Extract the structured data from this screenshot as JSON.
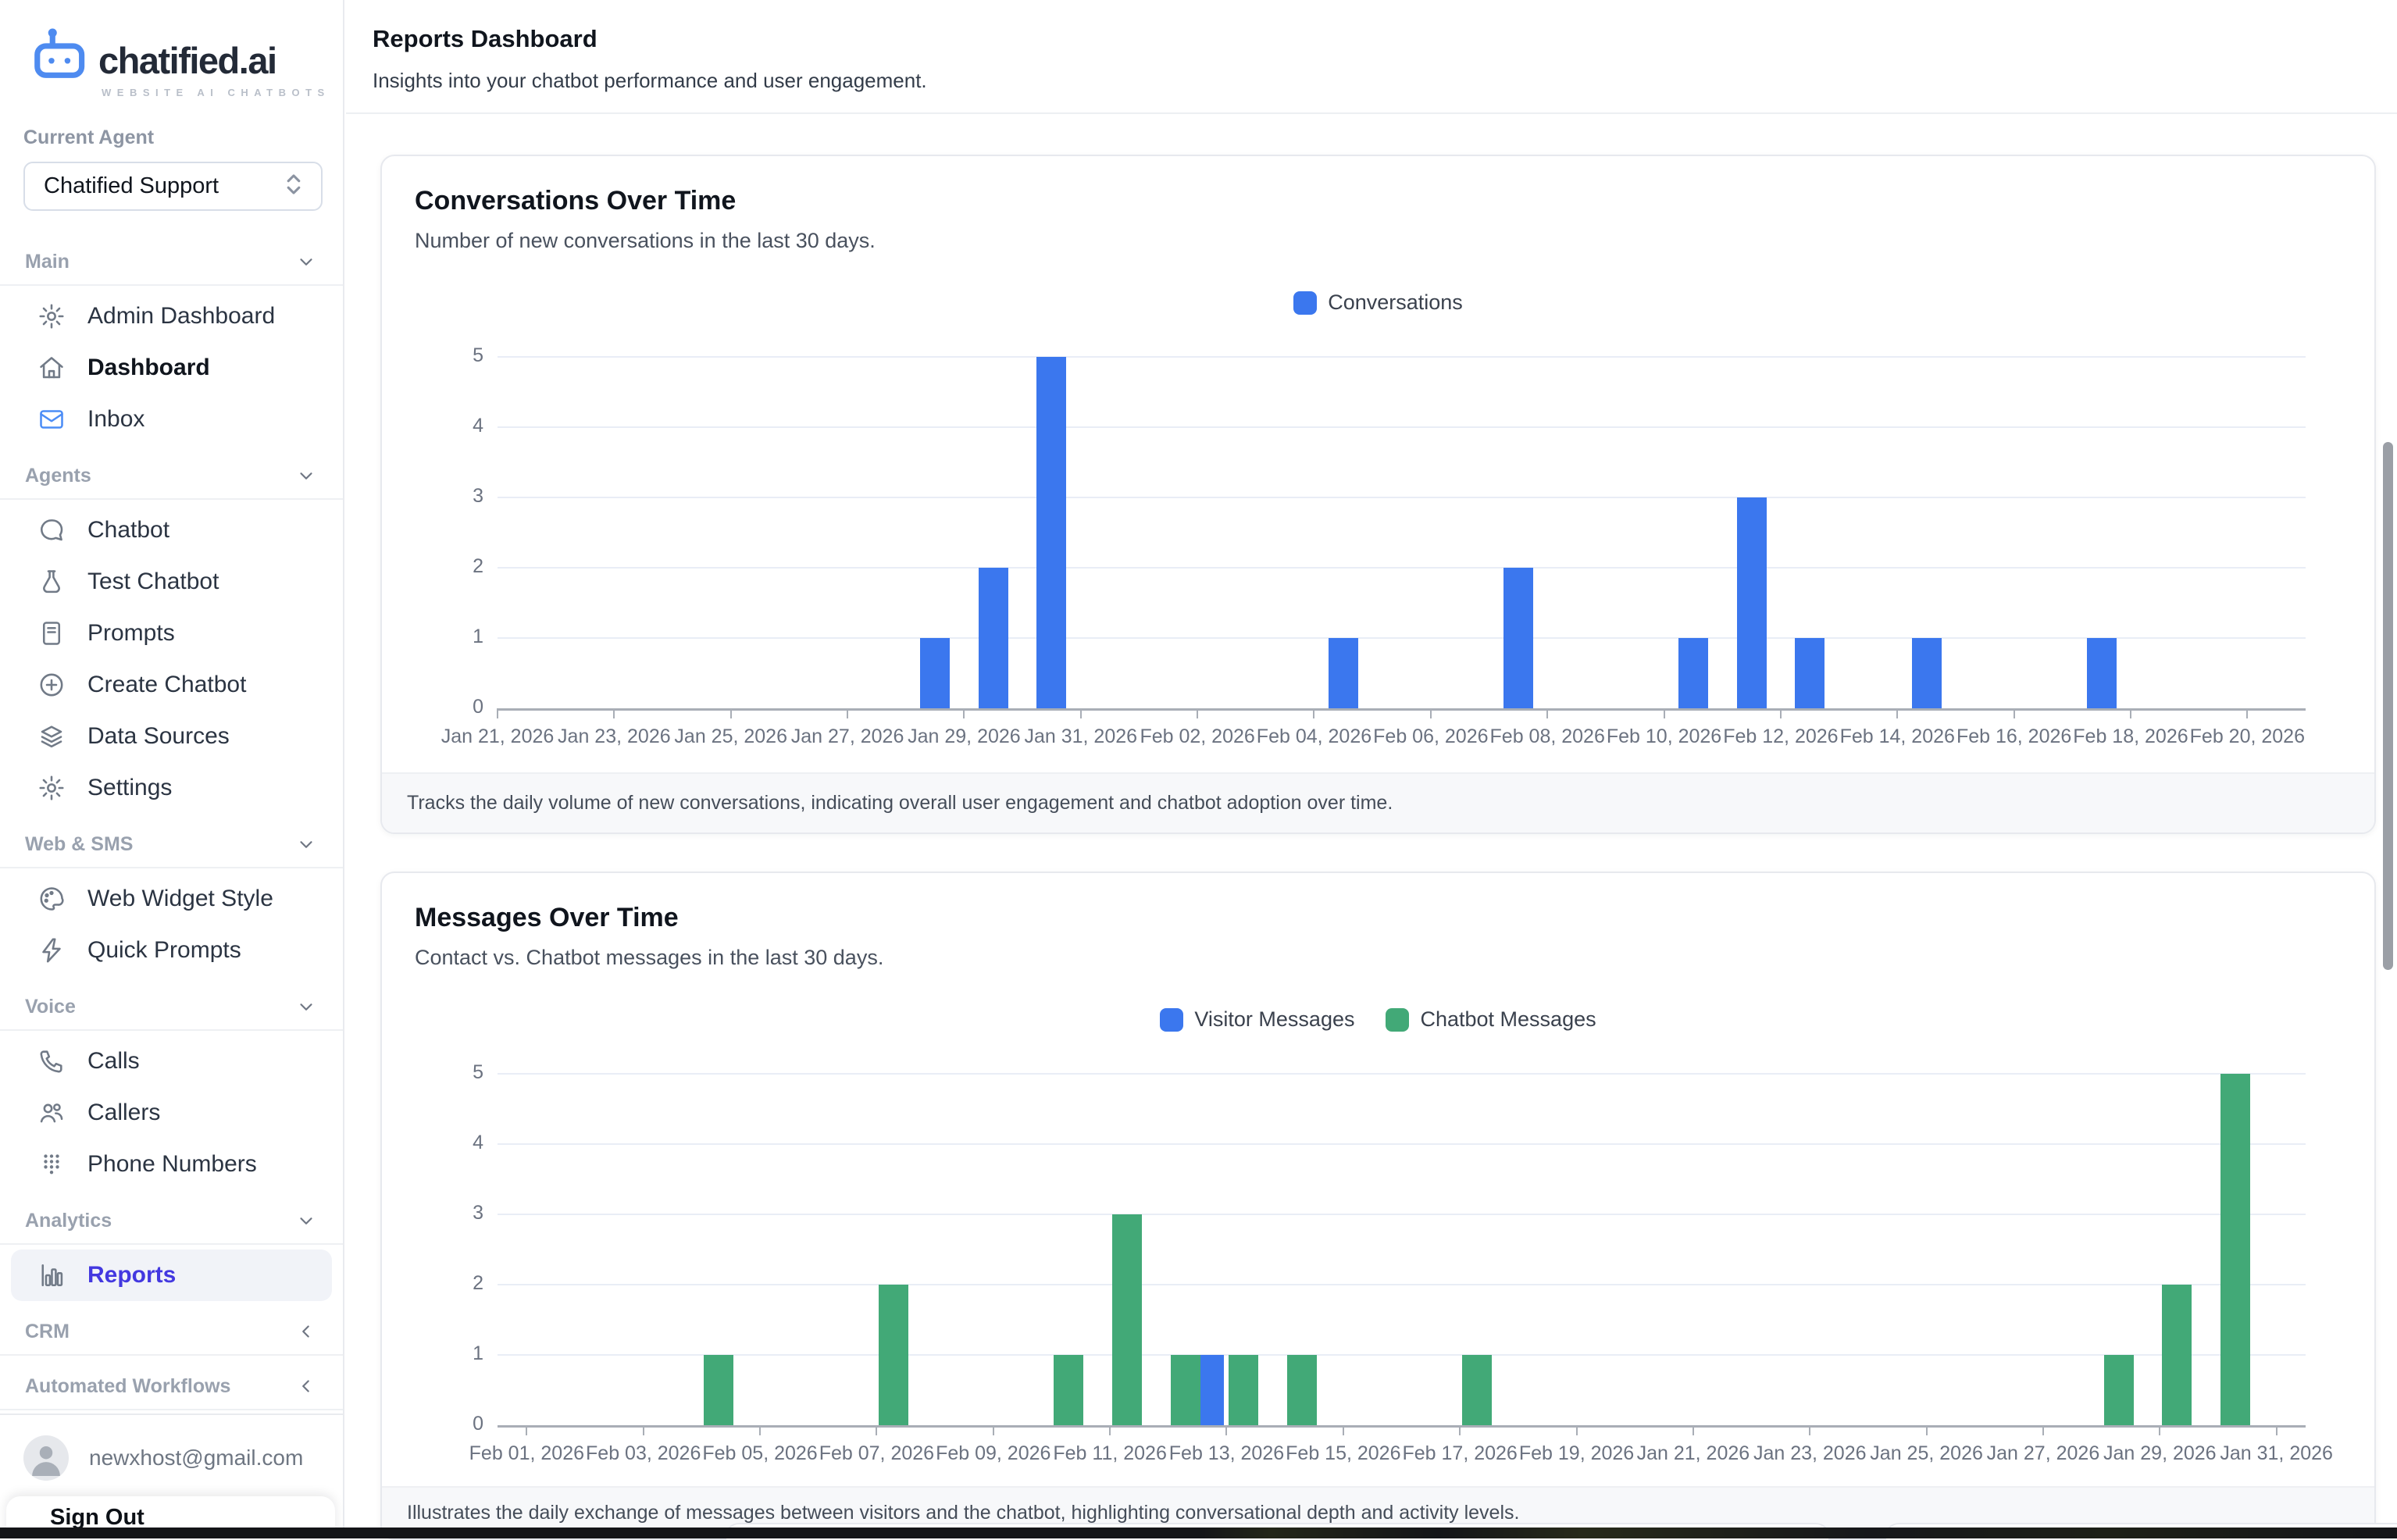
{
  "sidebar": {
    "brand": "chatified.ai",
    "tagline": "WEBSITE AI CHATBOTS",
    "current_agent_label": "Current Agent",
    "agent_select_value": "Chatified Support",
    "sections": [
      {
        "label": "Main",
        "chevron": "down",
        "items": [
          {
            "icon": "gear-icon",
            "label": "Admin Dashboard"
          },
          {
            "icon": "home-icon",
            "label": "Dashboard",
            "bold": true
          },
          {
            "icon": "mail-icon",
            "label": "Inbox",
            "icon_color": "#4c8df6"
          }
        ]
      },
      {
        "label": "Agents",
        "chevron": "down",
        "items": [
          {
            "icon": "chat-bubble-icon",
            "label": "Chatbot"
          },
          {
            "icon": "flask-icon",
            "label": "Test Chatbot"
          },
          {
            "icon": "document-icon",
            "label": "Prompts"
          },
          {
            "icon": "plus-circle-icon",
            "label": "Create Chatbot"
          },
          {
            "icon": "layers-icon",
            "label": "Data Sources"
          },
          {
            "icon": "gear-icon",
            "label": "Settings"
          }
        ]
      },
      {
        "label": "Web & SMS",
        "chevron": "down",
        "items": [
          {
            "icon": "palette-icon",
            "label": "Web Widget Style"
          },
          {
            "icon": "bolt-icon",
            "label": "Quick Prompts"
          }
        ]
      },
      {
        "label": "Voice",
        "chevron": "down",
        "items": [
          {
            "icon": "phone-icon",
            "label": "Calls"
          },
          {
            "icon": "users-icon",
            "label": "Callers"
          },
          {
            "icon": "dialpad-icon",
            "label": "Phone Numbers"
          }
        ]
      },
      {
        "label": "Analytics",
        "chevron": "down",
        "items": [
          {
            "icon": "bar-chart-icon",
            "label": "Reports",
            "active": true
          }
        ]
      },
      {
        "label": "CRM",
        "chevron": "left",
        "items": []
      },
      {
        "label": "Automated Workflows",
        "chevron": "left",
        "items": []
      }
    ],
    "user_email": "newxhost@gmail.com",
    "sign_out_label": "Sign Out",
    "accent_color": "#4338e0"
  },
  "header": {
    "title": "Reports Dashboard",
    "subtitle": "Insights into your chatbot performance and user engagement."
  },
  "chart_data": [
    {
      "type": "bar",
      "title": "Conversations Over Time",
      "subtitle": "Number of new conversations in the last 30 days.",
      "footer": "Tracks the daily volume of new conversations, indicating overall user engagement and chatbot adoption over time.",
      "legend_position": "top-center",
      "grid": true,
      "ylim": [
        0,
        5
      ],
      "yticks": [
        0,
        1,
        2,
        3,
        4,
        5
      ],
      "tick_every": 2,
      "tick_align": "edge",
      "categories": [
        "Jan 21, 2026",
        "Jan 22, 2026",
        "Jan 23, 2026",
        "Jan 24, 2026",
        "Jan 25, 2026",
        "Jan 26, 2026",
        "Jan 27, 2026",
        "Jan 28, 2026",
        "Jan 29, 2026",
        "Jan 30, 2026",
        "Jan 31, 2026",
        "Feb 01, 2026",
        "Feb 02, 2026",
        "Feb 03, 2026",
        "Feb 04, 2026",
        "Feb 05, 2026",
        "Feb 06, 2026",
        "Feb 07, 2026",
        "Feb 08, 2026",
        "Feb 09, 2026",
        "Feb 10, 2026",
        "Feb 11, 2026",
        "Feb 12, 2026",
        "Feb 13, 2026",
        "Feb 14, 2026",
        "Feb 15, 2026",
        "Feb 16, 2026",
        "Feb 17, 2026",
        "Feb 18, 2026",
        "Feb 19, 2026",
        "Feb 20, 2026"
      ],
      "series": [
        {
          "name": "Conversations",
          "color": "#3b77ee",
          "values": [
            0,
            0,
            0,
            0,
            0,
            0,
            0,
            1,
            2,
            5,
            0,
            0,
            0,
            0,
            1,
            0,
            0,
            2,
            0,
            0,
            1,
            3,
            1,
            0,
            1,
            0,
            0,
            1,
            0,
            0,
            0
          ]
        }
      ]
    },
    {
      "type": "bar",
      "title": "Messages Over Time",
      "subtitle": "Contact vs. Chatbot messages in the last 30 days.",
      "footer": "Illustrates the daily exchange of messages between visitors and the chatbot, highlighting conversational depth and activity levels.",
      "legend_position": "top-center",
      "grid": true,
      "ylim": [
        0,
        5
      ],
      "yticks": [
        0,
        1,
        2,
        3,
        4,
        5
      ],
      "tick_every": 2,
      "tick_align": "center",
      "categories": [
        "Feb 01, 2026",
        "Feb 02, 2026",
        "Feb 03, 2026",
        "Feb 04, 2026",
        "Feb 05, 2026",
        "Feb 06, 2026",
        "Feb 07, 2026",
        "Feb 08, 2026",
        "Feb 09, 2026",
        "Feb 10, 2026",
        "Feb 11, 2026",
        "Feb 12, 2026",
        "Feb 13, 2026",
        "Feb 14, 2026",
        "Feb 15, 2026",
        "Feb 16, 2026",
        "Feb 17, 2026",
        "Feb 18, 2026",
        "Feb 19, 2026",
        "Feb 20, 2026",
        "Jan 21, 2026",
        "Jan 22, 2026",
        "Jan 23, 2026",
        "Jan 24, 2026",
        "Jan 25, 2026",
        "Jan 26, 2026",
        "Jan 27, 2026",
        "Jan 28, 2026",
        "Jan 29, 2026",
        "Jan 30, 2026",
        "Jan 31, 2026"
      ],
      "series": [
        {
          "name": "Visitor Messages",
          "color": "#3b77ee",
          "values": [
            0,
            0,
            0,
            0,
            0,
            0,
            0,
            0,
            0,
            0,
            0,
            0,
            1,
            0,
            0,
            0,
            0,
            0,
            0,
            0,
            0,
            0,
            0,
            0,
            0,
            0,
            0,
            0,
            0,
            0,
            0
          ]
        },
        {
          "name": "Chatbot Messages",
          "color": "#42a977",
          "values": [
            0,
            0,
            0,
            1,
            0,
            0,
            2,
            0,
            0,
            1,
            3,
            1,
            1,
            1,
            0,
            0,
            1,
            0,
            0,
            0,
            0,
            0,
            0,
            0,
            0,
            0,
            0,
            1,
            2,
            5,
            0
          ]
        }
      ]
    }
  ]
}
